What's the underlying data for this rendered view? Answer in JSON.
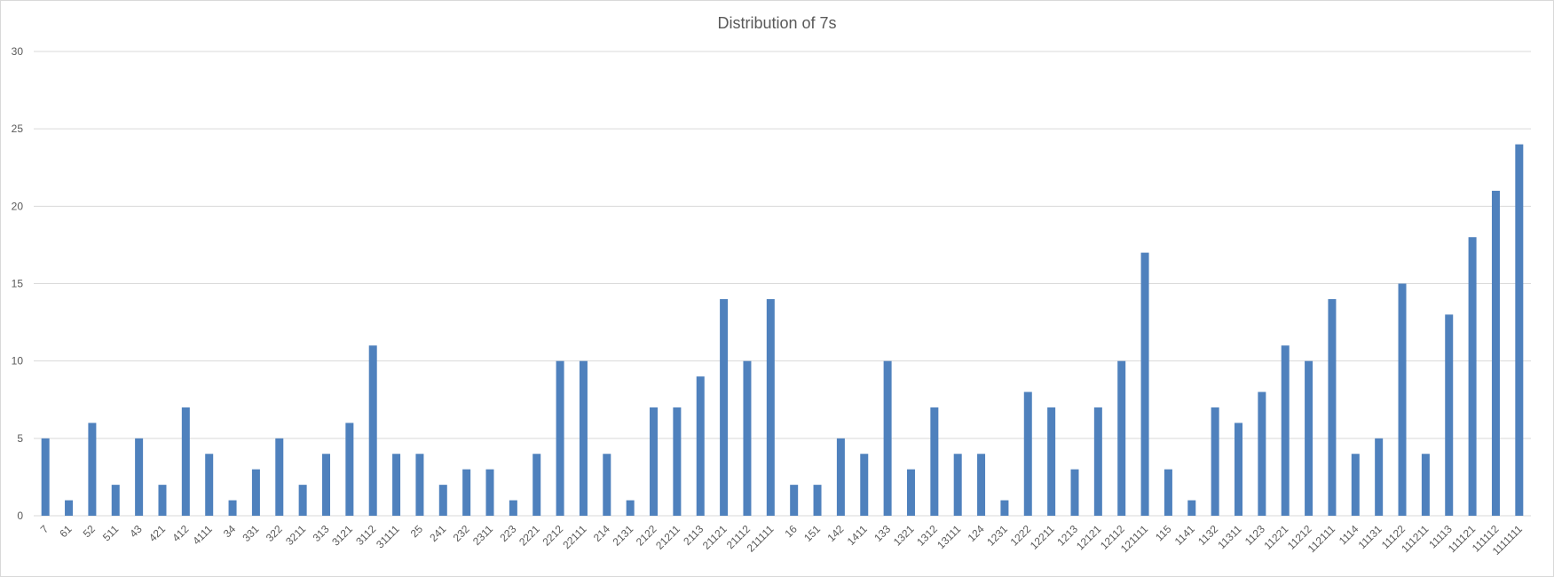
{
  "chart_data": {
    "type": "bar",
    "title": "Distribution of 7s",
    "xlabel": "",
    "ylabel": "",
    "ylim": [
      0,
      30
    ],
    "yticks": [
      0,
      5,
      10,
      15,
      20,
      25,
      30
    ],
    "grid": true,
    "legend": "none",
    "bar_color": "#4f81bd",
    "categories": [
      "7",
      "61",
      "52",
      "511",
      "43",
      "421",
      "412",
      "4111",
      "34",
      "331",
      "322",
      "3211",
      "313",
      "3121",
      "3112",
      "31111",
      "25",
      "241",
      "232",
      "2311",
      "223",
      "2221",
      "2212",
      "22111",
      "214",
      "2131",
      "2122",
      "21211",
      "2113",
      "21121",
      "21112",
      "211111",
      "16",
      "151",
      "142",
      "1411",
      "133",
      "1321",
      "1312",
      "13111",
      "124",
      "1231",
      "1222",
      "12211",
      "1213",
      "12121",
      "12112",
      "121111",
      "115",
      "1141",
      "1132",
      "11311",
      "1123",
      "11221",
      "11212",
      "112111",
      "1114",
      "11131",
      "11122",
      "111211",
      "11113",
      "111121",
      "111112",
      "1111111"
    ],
    "values": [
      5,
      1,
      6,
      2,
      5,
      2,
      7,
      4,
      1,
      3,
      5,
      2,
      4,
      6,
      11,
      4,
      4,
      2,
      3,
      3,
      1,
      4,
      10,
      10,
      4,
      1,
      7,
      7,
      9,
      14,
      10,
      14,
      2,
      2,
      5,
      4,
      10,
      3,
      7,
      4,
      4,
      1,
      8,
      7,
      3,
      7,
      10,
      17,
      3,
      1,
      7,
      6,
      8,
      11,
      10,
      14,
      4,
      5,
      15,
      4,
      13,
      18,
      21,
      24
    ]
  }
}
